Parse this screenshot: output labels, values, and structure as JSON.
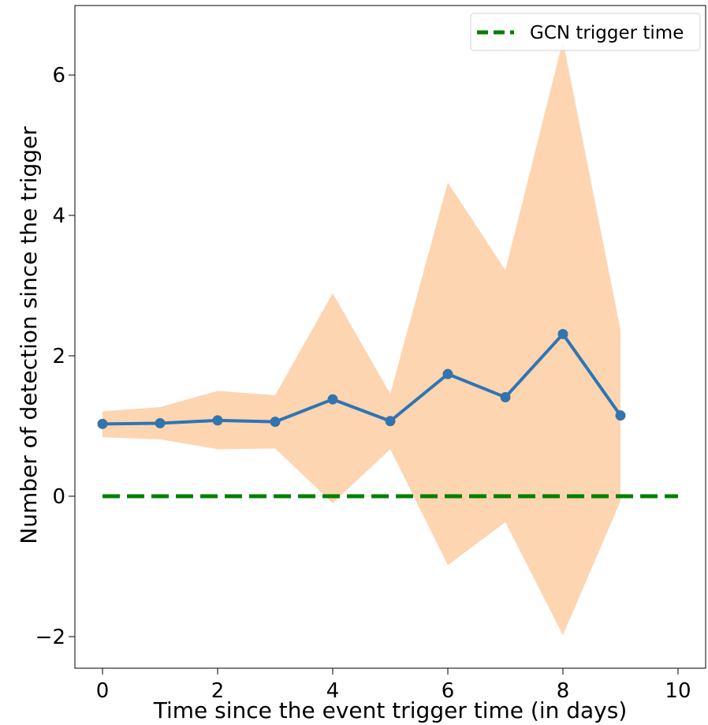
{
  "chart_data": {
    "type": "line",
    "title": "",
    "xlabel": "Time since the event trigger time (in days)",
    "ylabel": "Number of detection since the trigger",
    "xlim": [
      -0.48,
      10.48
    ],
    "ylim": [
      -2.45,
      6.99
    ],
    "x_ticks": [
      0,
      2,
      4,
      6,
      8,
      10
    ],
    "y_ticks": [
      -2,
      0,
      2,
      4,
      6
    ],
    "x_tick_labels": [
      "0",
      "2",
      "4",
      "6",
      "8",
      "10"
    ],
    "y_tick_labels": [
      "−2",
      "0",
      "2",
      "4",
      "6"
    ],
    "grid": false,
    "legend_position": "top-right",
    "series": [
      {
        "kind": "line-markers",
        "color": "#2e75b6",
        "x": [
          0,
          1,
          2,
          3,
          4,
          5,
          6,
          7,
          8,
          9
        ],
        "y": [
          1.03,
          1.04,
          1.08,
          1.06,
          1.38,
          1.07,
          1.74,
          1.41,
          2.31,
          1.15
        ]
      },
      {
        "kind": "band",
        "color": "#fdd5b1",
        "x": [
          0,
          1,
          2,
          3,
          4,
          5,
          6,
          7,
          8,
          9
        ],
        "upper": [
          1.21,
          1.27,
          1.5,
          1.44,
          2.89,
          1.46,
          4.47,
          3.22,
          6.49,
          2.37
        ],
        "lower": [
          0.84,
          0.81,
          0.67,
          0.68,
          -0.1,
          0.67,
          -0.98,
          -0.37,
          -1.98,
          -0.07
        ]
      },
      {
        "name": "GCN trigger time",
        "kind": "dashed-line",
        "color": "#008000",
        "x": [
          0,
          10
        ],
        "y": [
          0,
          0
        ]
      }
    ]
  }
}
